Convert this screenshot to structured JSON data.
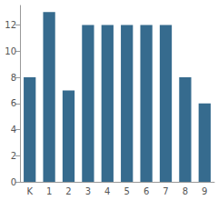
{
  "chart_data": {
    "type": "bar",
    "categories": [
      "K",
      "1",
      "2",
      "3",
      "4",
      "5",
      "6",
      "7",
      "8",
      "9"
    ],
    "values": [
      8,
      13,
      7,
      12,
      12,
      12,
      12,
      12,
      8,
      6
    ],
    "color": "#366b8e",
    "ylim": [
      0,
      13.5
    ],
    "yticks": [
      0,
      2,
      4,
      6,
      8,
      10,
      12
    ],
    "grid": false
  }
}
